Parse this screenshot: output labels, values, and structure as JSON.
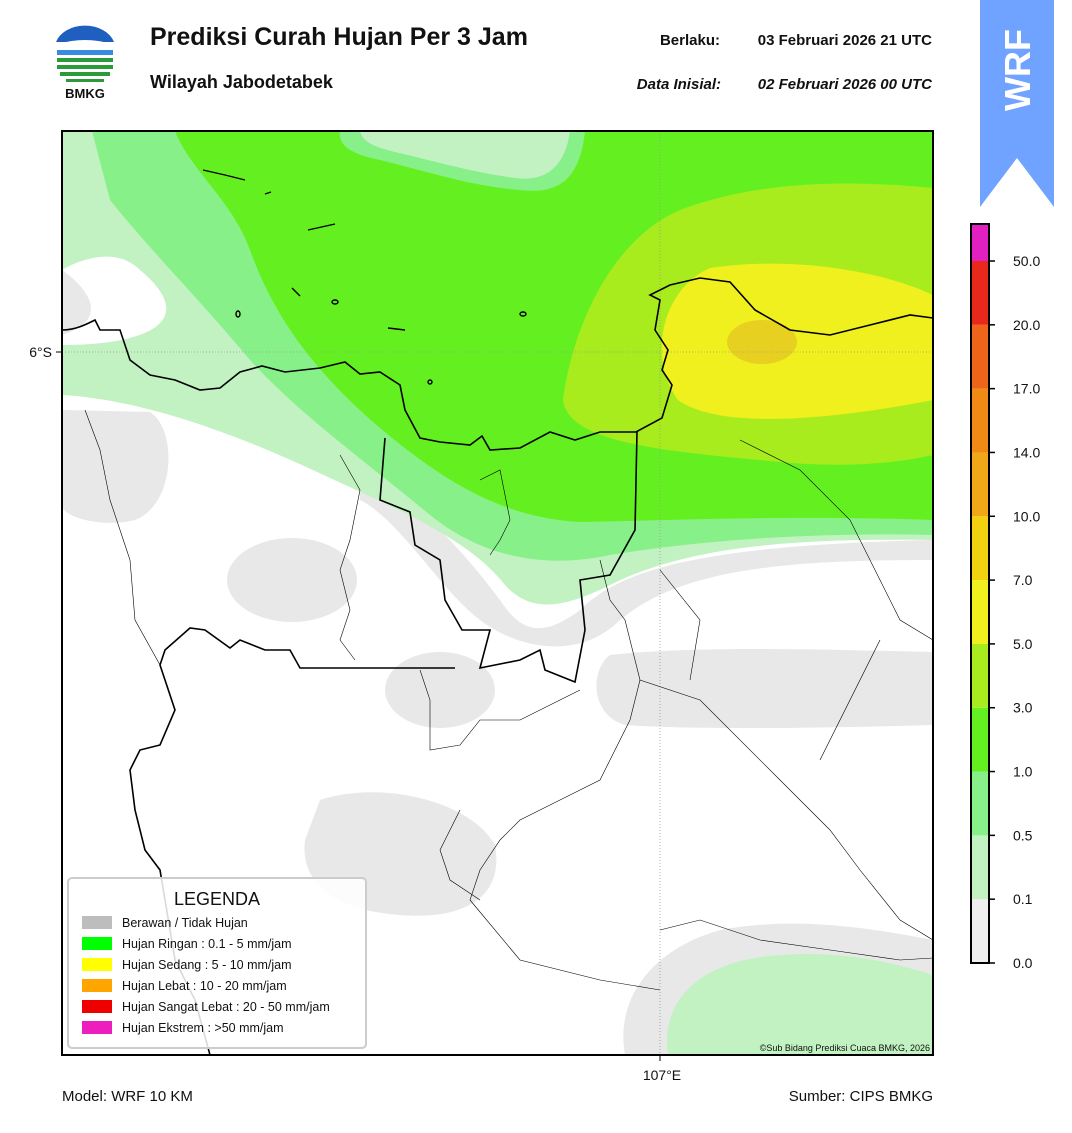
{
  "header": {
    "logo_text": "BMKG",
    "title": "Prediksi Curah Hujan Per 3 Jam",
    "subtitle": "Wilayah Jabodetabek",
    "valid_label": "Berlaku:",
    "valid_time": "03 Februari 2026 21 UTC",
    "init_label": "Data Inisial:",
    "init_time": "02 Februari 2026 00 UTC",
    "badge": "WRF"
  },
  "map": {
    "lat_label": "6°S",
    "lon_label": "107°E",
    "credit": "©Sub Bidang Prediksi Cuaca BMKG, 2026"
  },
  "legend": {
    "title": "LEGENDA",
    "items": [
      {
        "label": "Berawan / Tidak Hujan",
        "color": "#bdbdbd"
      },
      {
        "label": "Hujan Ringan : 0.1 - 5 mm/jam",
        "color": "#00ff00"
      },
      {
        "label": "Hujan Sedang : 5 - 10 mm/jam",
        "color": "#ffff00"
      },
      {
        "label": "Hujan Lebat : 10 - 20 mm/jam",
        "color": "#ffa500"
      },
      {
        "label": "Hujan Sangat Lebat : 20 - 50 mm/jam",
        "color": "#ee0000"
      },
      {
        "label": "Hujan Ekstrem : >50 mm/jam",
        "color": "#ee1ebe"
      }
    ]
  },
  "colorbar": {
    "ticks": [
      "0.0",
      "0.1",
      "0.5",
      "1.0",
      "3.0",
      "5.0",
      "7.0",
      "10.0",
      "14.0",
      "17.0",
      "20.0",
      "50.0"
    ],
    "colors": [
      "#efefef",
      "#c2f2c2",
      "#88f088",
      "#64f020",
      "#a8ec1e",
      "#f0f01e",
      "#f2d210",
      "#f0a818",
      "#f08a14",
      "#ee6418",
      "#e8281a",
      "#e020c0"
    ]
  },
  "footer": {
    "model": "Model: WRF 10 KM",
    "source": "Sumber: CIPS BMKG"
  }
}
